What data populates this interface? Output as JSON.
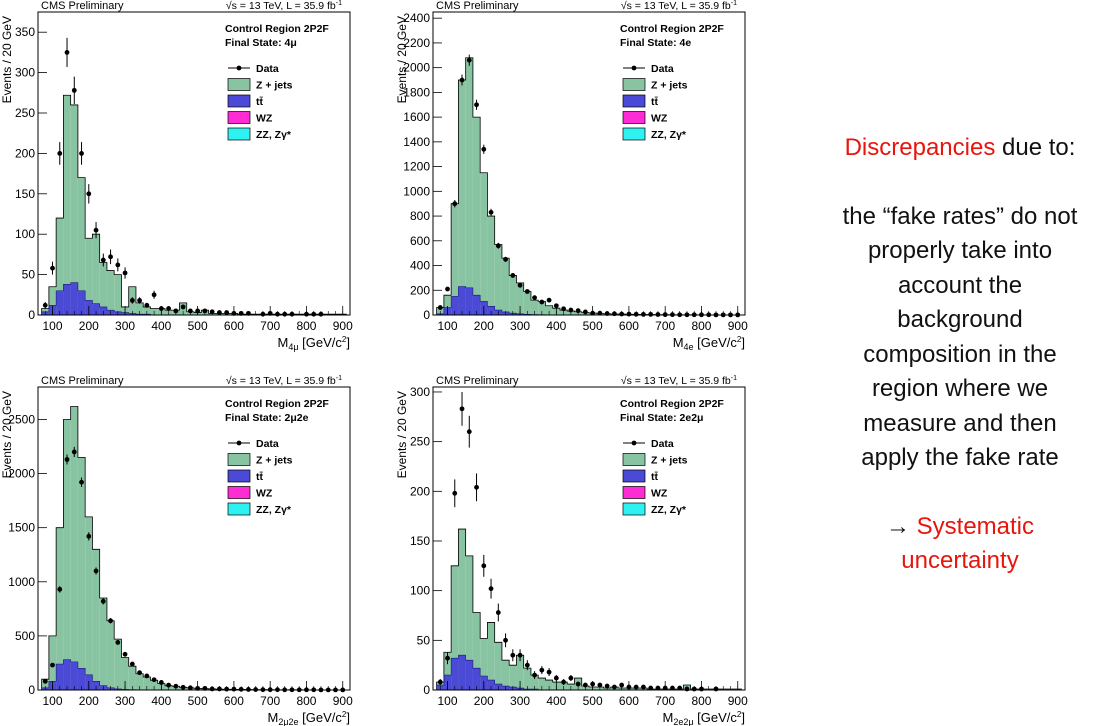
{
  "colors": {
    "zjets": "#88c4a2",
    "ttbar": "#4a4ad6",
    "wz": "#ff2bd4",
    "zz": "#2ef2f2",
    "data": "#000000",
    "accent": "#e8150d"
  },
  "common": {
    "preliminary": "CMS Preliminary",
    "lumi": "√s = 13 TeV, L = 35.9 fb",
    "lumi_sup": "-1",
    "region": "Control Region 2P2F",
    "legend": [
      "Data",
      "Z + jets",
      "tt̄",
      "WZ",
      "ZZ, Zγ*"
    ]
  },
  "chart_data": [
    {
      "type": "bar",
      "id": "4mu",
      "final_state": "Final State: 4μ",
      "xlabel_main": "M",
      "xlabel_sub": "4μ",
      "xlabel_unit": " [GeV/c",
      "ylabel": "Events / 20 GeV",
      "xlim": [
        60,
        920
      ],
      "ylim": [
        0,
        375
      ],
      "xticks": [
        100,
        200,
        300,
        400,
        500,
        600,
        700,
        800,
        900
      ],
      "yticks": [
        0,
        50,
        100,
        150,
        200,
        250,
        300,
        350
      ],
      "bin_edges": [
        70,
        90,
        110,
        130,
        150,
        170,
        190,
        210,
        230,
        250,
        270,
        290,
        310,
        330,
        350,
        370,
        390,
        410,
        430,
        450,
        470,
        490,
        510,
        530,
        550,
        570,
        590,
        610,
        630,
        650,
        670,
        690,
        710,
        730,
        750,
        770,
        790,
        810,
        830,
        850,
        870,
        890,
        910
      ],
      "zjets_total": [
        8,
        35,
        120,
        272,
        260,
        170,
        95,
        100,
        65,
        55,
        50,
        10,
        35,
        15,
        10,
        8,
        8,
        6,
        6,
        15,
        4,
        3,
        6,
        2,
        2,
        2,
        2,
        1,
        1,
        1,
        1,
        1,
        1,
        1,
        1,
        1,
        1,
        1,
        1,
        1,
        1,
        1
      ],
      "ttbar": [
        4,
        12,
        30,
        38,
        40,
        30,
        18,
        14,
        10,
        6,
        4,
        3,
        2,
        1,
        1,
        0,
        0,
        0,
        0,
        0,
        0,
        0,
        0,
        0,
        0,
        0,
        0,
        0,
        0,
        0,
        0,
        0,
        0,
        0,
        0,
        0,
        0,
        0,
        0,
        0,
        0,
        0
      ],
      "data_x": [
        80,
        100,
        120,
        140,
        160,
        180,
        200,
        220,
        240,
        260,
        280,
        300,
        320,
        340,
        360,
        380,
        400,
        420,
        440,
        460,
        480,
        500,
        520,
        540,
        560,
        580,
        600,
        620,
        640,
        680,
        700,
        720,
        740,
        760,
        800,
        820,
        840
      ],
      "data_y": [
        12,
        58,
        200,
        325,
        278,
        200,
        150,
        105,
        68,
        72,
        62,
        52,
        18,
        18,
        12,
        25,
        8,
        8,
        5,
        10,
        5,
        5,
        5,
        4,
        3,
        3,
        2,
        2,
        2,
        1,
        2,
        1,
        1,
        1,
        1,
        1,
        1
      ],
      "data_err": [
        4,
        8,
        14,
        18,
        17,
        14,
        12,
        10,
        8,
        9,
        8,
        7,
        4,
        4,
        3,
        5,
        3,
        3,
        2,
        3,
        2,
        2,
        2,
        2,
        2,
        2,
        1,
        1,
        1,
        1,
        1,
        1,
        1,
        1,
        1,
        1,
        1
      ]
    },
    {
      "type": "bar",
      "id": "4e",
      "final_state": "Final State: 4e",
      "xlabel_main": "M",
      "xlabel_sub": "4e",
      "xlabel_unit": " [GeV/c",
      "ylabel": "Events / 20 GeV",
      "xlim": [
        60,
        920
      ],
      "ylim": [
        0,
        2450
      ],
      "xticks": [
        100,
        200,
        300,
        400,
        500,
        600,
        700,
        800,
        900
      ],
      "yticks": [
        0,
        200,
        400,
        600,
        800,
        1000,
        1200,
        1400,
        1600,
        1800,
        2000,
        2200,
        2400
      ],
      "bin_edges": [
        70,
        90,
        110,
        130,
        150,
        170,
        190,
        210,
        230,
        250,
        270,
        290,
        310,
        330,
        350,
        370,
        390,
        410,
        430,
        450,
        470,
        490,
        510,
        530,
        550,
        570,
        590,
        610,
        630,
        650,
        670,
        690,
        710,
        730,
        750,
        770,
        790,
        810,
        830,
        850,
        870,
        890,
        910
      ],
      "zjets_total": [
        60,
        160,
        900,
        1900,
        2080,
        1600,
        1150,
        800,
        570,
        460,
        320,
        260,
        190,
        120,
        110,
        75,
        55,
        40,
        32,
        26,
        20,
        16,
        12,
        10,
        8,
        8,
        6,
        5,
        4,
        4,
        3,
        3,
        2,
        2,
        2,
        2,
        1,
        1,
        1,
        1,
        1,
        1
      ],
      "ttbar": [
        10,
        60,
        150,
        230,
        220,
        160,
        110,
        70,
        40,
        25,
        15,
        10,
        6,
        4,
        3,
        2,
        1,
        1,
        0,
        0,
        0,
        0,
        0,
        0,
        0,
        0,
        0,
        0,
        0,
        0,
        0,
        0,
        0,
        0,
        0,
        0,
        0,
        0,
        0,
        0,
        0,
        0
      ],
      "data_x": [
        80,
        100,
        120,
        140,
        160,
        180,
        200,
        220,
        240,
        260,
        280,
        300,
        320,
        340,
        360,
        380,
        400,
        420,
        440,
        460,
        480,
        500,
        520,
        540,
        560,
        580,
        600,
        620,
        640,
        660,
        680,
        700,
        720,
        740,
        760,
        780,
        800,
        820,
        840,
        860,
        880,
        900
      ],
      "data_y": [
        60,
        210,
        900,
        1900,
        2060,
        1700,
        1340,
        830,
        560,
        450,
        320,
        240,
        190,
        140,
        105,
        120,
        75,
        50,
        40,
        35,
        25,
        15,
        15,
        12,
        10,
        8,
        7,
        6,
        5,
        5,
        4,
        3,
        3,
        2,
        2,
        2,
        2,
        2,
        1,
        1,
        1,
        1
      ],
      "data_err": [
        10,
        15,
        30,
        44,
        45,
        41,
        37,
        29,
        24,
        21,
        18,
        16,
        14,
        12,
        10,
        11,
        9,
        7,
        6,
        6,
        5,
        4,
        4,
        3,
        3,
        3,
        3,
        2,
        2,
        2,
        2,
        2,
        2,
        1,
        1,
        1,
        1,
        1,
        1,
        1,
        1,
        1
      ]
    },
    {
      "type": "bar",
      "id": "2mu2e",
      "final_state": "Final State: 2μ2e",
      "xlabel_main": "M",
      "xlabel_sub": "2μ2e",
      "xlabel_unit": " [GeV/c",
      "ylabel": "Events / 20 GeV",
      "xlim": [
        60,
        920
      ],
      "ylim": [
        0,
        2800
      ],
      "xticks": [
        100,
        200,
        300,
        400,
        500,
        600,
        700,
        800,
        900
      ],
      "yticks": [
        0,
        500,
        1000,
        1500,
        2000,
        2500
      ],
      "bin_edges": [
        70,
        90,
        110,
        130,
        150,
        170,
        190,
        210,
        230,
        250,
        270,
        290,
        310,
        330,
        350,
        370,
        390,
        410,
        430,
        450,
        470,
        490,
        510,
        530,
        550,
        570,
        590,
        610,
        630,
        650,
        670,
        690,
        710,
        730,
        750,
        770,
        790,
        810,
        830,
        850,
        870,
        890,
        910
      ],
      "zjets_total": [
        100,
        500,
        1500,
        2500,
        2620,
        2150,
        1600,
        1300,
        850,
        640,
        470,
        300,
        220,
        150,
        120,
        90,
        60,
        40,
        35,
        25,
        20,
        15,
        12,
        10,
        8,
        7,
        6,
        5,
        4,
        3,
        3,
        3,
        2,
        2,
        2,
        2,
        1,
        1,
        1,
        1,
        1,
        1
      ],
      "ttbar": [
        20,
        80,
        240,
        280,
        260,
        200,
        140,
        80,
        40,
        20,
        10,
        5,
        3,
        2,
        1,
        0,
        0,
        0,
        0,
        0,
        0,
        0,
        0,
        0,
        0,
        0,
        0,
        0,
        0,
        0,
        0,
        0,
        0,
        0,
        0,
        0,
        0,
        0,
        0,
        0,
        0,
        0
      ],
      "data_x": [
        80,
        100,
        120,
        140,
        160,
        180,
        200,
        220,
        240,
        260,
        280,
        300,
        320,
        340,
        360,
        380,
        400,
        420,
        440,
        460,
        480,
        500,
        520,
        540,
        560,
        580,
        600,
        620,
        640,
        660,
        680,
        700,
        720,
        740,
        760,
        780,
        800,
        820,
        840,
        860,
        880,
        900
      ],
      "data_y": [
        80,
        230,
        930,
        2130,
        2200,
        1920,
        1420,
        1100,
        820,
        640,
        440,
        330,
        240,
        160,
        130,
        95,
        70,
        45,
        35,
        25,
        20,
        15,
        15,
        10,
        10,
        8,
        8,
        6,
        5,
        4,
        3,
        3,
        3,
        2,
        2,
        2,
        2,
        2,
        1,
        1,
        1,
        1
      ],
      "data_err": [
        10,
        15,
        30,
        46,
        47,
        44,
        38,
        33,
        29,
        25,
        21,
        18,
        15,
        13,
        11,
        10,
        8,
        7,
        6,
        5,
        4,
        4,
        4,
        3,
        3,
        3,
        3,
        2,
        2,
        2,
        2,
        2,
        2,
        1,
        1,
        1,
        1,
        1,
        1,
        1,
        1,
        1
      ]
    },
    {
      "type": "bar",
      "id": "2e2mu",
      "final_state": "Final State: 2e2μ",
      "xlabel_main": "M",
      "xlabel_sub": "2e2μ",
      "xlabel_unit": " [GeV/c",
      "ylabel": "Events / 20 GeV",
      "xlim": [
        60,
        920
      ],
      "ylim": [
        0,
        305
      ],
      "xticks": [
        100,
        200,
        300,
        400,
        500,
        600,
        700,
        800,
        900
      ],
      "yticks": [
        0,
        50,
        100,
        150,
        200,
        250,
        300
      ],
      "bin_edges": [
        70,
        90,
        110,
        130,
        150,
        170,
        190,
        210,
        230,
        250,
        270,
        290,
        310,
        330,
        350,
        370,
        390,
        410,
        430,
        450,
        470,
        490,
        510,
        530,
        550,
        570,
        590,
        610,
        630,
        650,
        670,
        690,
        710,
        730,
        750,
        770,
        790,
        810,
        830,
        850,
        870,
        890,
        910
      ],
      "zjets_total": [
        8,
        38,
        125,
        162,
        135,
        78,
        52,
        68,
        48,
        30,
        25,
        35,
        22,
        15,
        12,
        10,
        8,
        8,
        6,
        12,
        4,
        3,
        3,
        2,
        3,
        2,
        2,
        2,
        2,
        1,
        1,
        1,
        1,
        1,
        5,
        1,
        1,
        1,
        1,
        1,
        1,
        1
      ],
      "ttbar": [
        5,
        15,
        32,
        35,
        30,
        22,
        14,
        10,
        6,
        4,
        3,
        2,
        1,
        1,
        0,
        0,
        0,
        0,
        0,
        0,
        0,
        0,
        0,
        0,
        0,
        0,
        0,
        0,
        0,
        0,
        0,
        0,
        0,
        0,
        0,
        0,
        0,
        0,
        0,
        0,
        0,
        0
      ],
      "data_x": [
        80,
        100,
        120,
        140,
        160,
        180,
        200,
        220,
        240,
        260,
        280,
        300,
        320,
        340,
        360,
        380,
        400,
        420,
        440,
        460,
        480,
        500,
        520,
        540,
        560,
        580,
        600,
        620,
        640,
        660,
        680,
        700,
        720,
        740,
        760,
        780,
        800,
        840
      ],
      "data_y": [
        8,
        32,
        198,
        283,
        260,
        204,
        125,
        102,
        78,
        50,
        35,
        35,
        25,
        15,
        20,
        18,
        12,
        8,
        12,
        6,
        5,
        6,
        5,
        4,
        3,
        5,
        3,
        3,
        3,
        2,
        2,
        2,
        2,
        2,
        1,
        1,
        1,
        1
      ],
      "data_err": [
        3,
        6,
        14,
        17,
        16,
        14,
        11,
        10,
        9,
        7,
        6,
        6,
        5,
        4,
        4,
        4,
        3,
        3,
        3,
        2,
        2,
        2,
        2,
        2,
        2,
        2,
        2,
        2,
        2,
        1,
        1,
        1,
        1,
        1,
        1,
        1,
        1,
        1
      ]
    }
  ],
  "side_text": {
    "line1_red": "Discrepancies",
    "line1_rest": " due to:",
    "body": [
      "the “fake rates” do not",
      "properly take into",
      "account the",
      "background",
      "composition in the",
      "region where we",
      "measure and then",
      "apply the fake rate"
    ],
    "arrow": "→",
    "systematic": " Systematic",
    "uncertainty": "uncertainty"
  }
}
